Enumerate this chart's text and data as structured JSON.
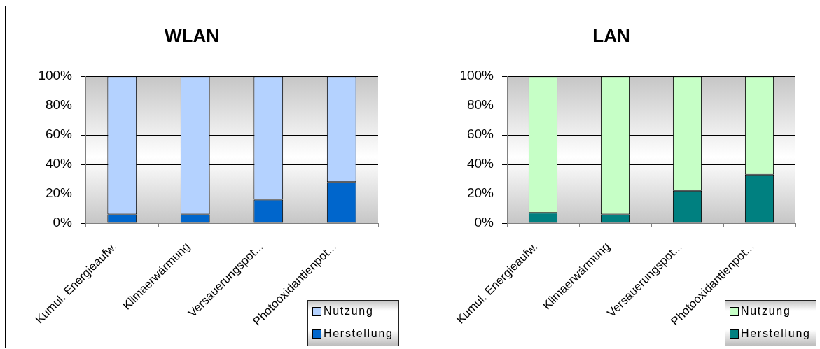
{
  "chart_data": [
    {
      "type": "bar",
      "title": "WLAN",
      "categories": [
        "Kumul. Energieaufw.",
        "Klimaerwärmung",
        "Versauerungspot...",
        "Photooxidantienpot..."
      ],
      "stacked": true,
      "series": [
        {
          "name": "Herstellung",
          "color": "#0066cc",
          "values": [
            6,
            6,
            16,
            28
          ]
        },
        {
          "name": "Nutzung",
          "color": "#b4d2ff",
          "values": [
            94,
            94,
            84,
            72
          ]
        }
      ],
      "ylim": [
        0,
        100
      ],
      "yticks": [
        {
          "value": 0,
          "label": "0%"
        },
        {
          "value": 20,
          "label": "20%"
        },
        {
          "value": 40,
          "label": "40%"
        },
        {
          "value": 60,
          "label": "60%"
        },
        {
          "value": 80,
          "label": "80%"
        },
        {
          "value": 100,
          "label": "100%"
        }
      ],
      "grid": "y",
      "legend": "bottom right"
    },
    {
      "type": "bar",
      "title": "LAN",
      "categories": [
        "Kumul. Energieaufw.",
        "Klimaerwärmung",
        "Versauerungspot...",
        "Photooxidantienpot..."
      ],
      "stacked": true,
      "series": [
        {
          "name": "Herstellung",
          "color": "#008080",
          "values": [
            7,
            6,
            22,
            33
          ]
        },
        {
          "name": "Nutzung",
          "color": "#c6ffc6",
          "values": [
            93,
            94,
            78,
            67
          ]
        }
      ],
      "ylim": [
        0,
        100
      ],
      "yticks": [
        {
          "value": 0,
          "label": "0%"
        },
        {
          "value": 20,
          "label": "20%"
        },
        {
          "value": 40,
          "label": "40%"
        },
        {
          "value": 60,
          "label": "60%"
        },
        {
          "value": 80,
          "label": "80%"
        },
        {
          "value": 100,
          "label": "100%"
        }
      ],
      "grid": "y",
      "legend": "bottom right"
    }
  ]
}
